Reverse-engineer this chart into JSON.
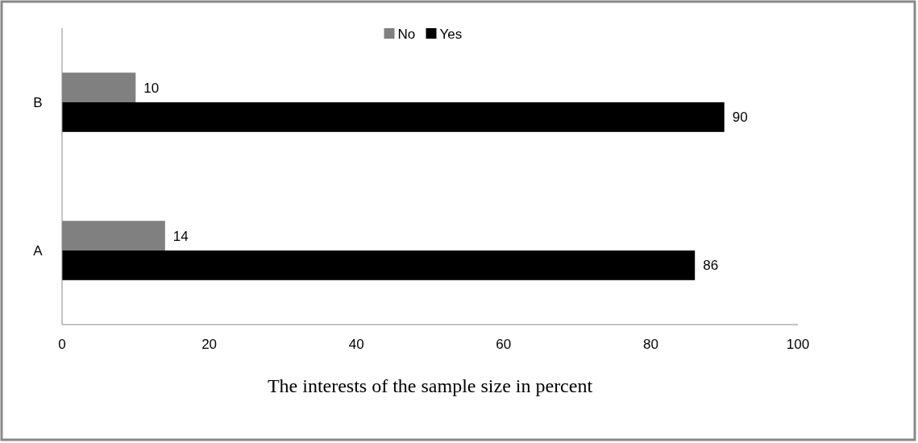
{
  "chart_data": {
    "type": "bar",
    "orientation": "horizontal",
    "categories": [
      "B",
      "A"
    ],
    "series": [
      {
        "name": "No",
        "color": "#808080",
        "values": [
          10,
          14
        ]
      },
      {
        "name": "Yes",
        "color": "#000000",
        "values": [
          90,
          86
        ]
      }
    ],
    "xlim": [
      0,
      100
    ],
    "xticks": [
      0,
      20,
      40,
      60,
      80,
      100
    ],
    "xlabel": "The interests of the sample size in percent",
    "legend": "top",
    "data_labels": true,
    "grid": false
  }
}
